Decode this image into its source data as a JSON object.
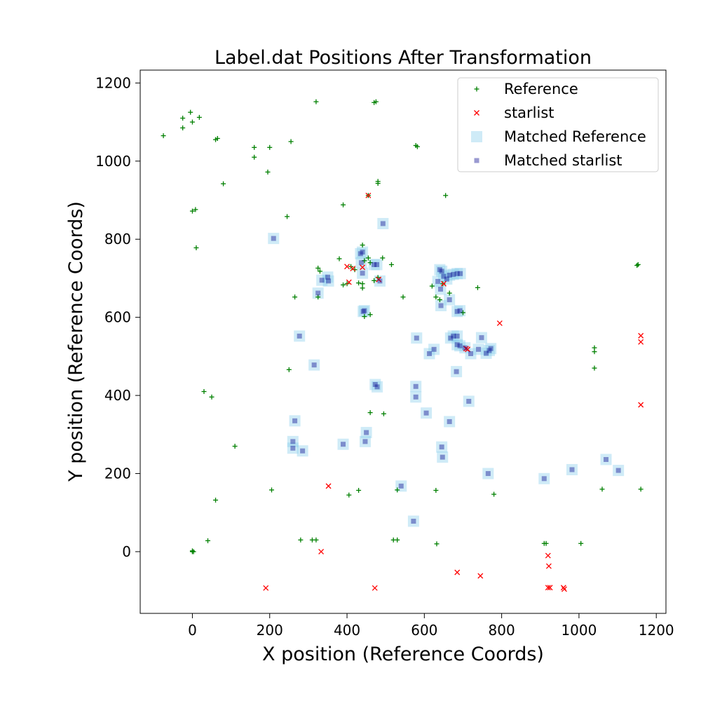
{
  "chart_data": {
    "type": "scatter",
    "title": "Label.dat Positions After Transformation",
    "xlabel": "X position (Reference Coords)",
    "ylabel": "Y position (Reference Coords)",
    "xlim": [
      -135,
      1225
    ],
    "ylim": [
      -158,
      1233
    ],
    "x_ticks": [
      0,
      200,
      400,
      600,
      800,
      1000,
      1200
    ],
    "y_ticks": [
      0,
      200,
      400,
      600,
      800,
      1000,
      1200
    ],
    "x_tick_labels": [
      "0",
      "200",
      "400",
      "600",
      "800",
      "1000",
      "1200"
    ],
    "y_tick_labels": [
      "0",
      "200",
      "400",
      "600",
      "800",
      "1000",
      "1200"
    ],
    "grid": false,
    "legend_position": "upper right",
    "colors": {
      "reference": "#008000",
      "starlist": "#ff0000",
      "matched_reference": "#87ceeb",
      "matched_starlist": "#00008b"
    },
    "series": [
      {
        "name": "Reference",
        "marker": "plus",
        "points": [
          [
            -75,
            1065
          ],
          [
            -25,
            1110
          ],
          [
            -25,
            1085
          ],
          [
            -5,
            1125
          ],
          [
            0,
            1100
          ],
          [
            18,
            1112
          ],
          [
            60,
            1055
          ],
          [
            65,
            1058
          ],
          [
            160,
            1035
          ],
          [
            160,
            1010
          ],
          [
            200,
            1035
          ],
          [
            195,
            972
          ],
          [
            255,
            1050
          ],
          [
            80,
            942
          ],
          [
            0,
            872
          ],
          [
            8,
            876
          ],
          [
            10,
            778
          ],
          [
            245,
            858
          ],
          [
            320,
            1152
          ],
          [
            390,
            888
          ],
          [
            470,
            1150
          ],
          [
            475,
            1152
          ],
          [
            578,
            1040
          ],
          [
            582,
            1037
          ],
          [
            480,
            948
          ],
          [
            480,
            943
          ],
          [
            655,
            912
          ],
          [
            455,
            912
          ],
          [
            1150,
            733
          ],
          [
            1153,
            735
          ],
          [
            325,
            726
          ],
          [
            330,
            718
          ],
          [
            380,
            750
          ],
          [
            390,
            683
          ],
          [
            400,
            686
          ],
          [
            410,
            730
          ],
          [
            420,
            722
          ],
          [
            430,
            688
          ],
          [
            440,
            675
          ],
          [
            440,
            686
          ],
          [
            445,
            745
          ],
          [
            440,
            785
          ],
          [
            455,
            752
          ],
          [
            460,
            740
          ],
          [
            492,
            752
          ],
          [
            515,
            735
          ],
          [
            545,
            652
          ],
          [
            480,
            702
          ],
          [
            470,
            694
          ],
          [
            445,
            602
          ],
          [
            460,
            607
          ],
          [
            265,
            652
          ],
          [
            325,
            652
          ],
          [
            620,
            680
          ],
          [
            630,
            652
          ],
          [
            640,
            645
          ],
          [
            648,
            686
          ],
          [
            665,
            662
          ],
          [
            700,
            612
          ],
          [
            738,
            676
          ],
          [
            460,
            356
          ],
          [
            495,
            353
          ],
          [
            1040,
            522
          ],
          [
            1040,
            512
          ],
          [
            1040,
            470
          ],
          [
            250,
            466
          ],
          [
            30,
            410
          ],
          [
            50,
            396
          ],
          [
            110,
            270
          ],
          [
            205,
            158
          ],
          [
            60,
            132
          ],
          [
            405,
            145
          ],
          [
            430,
            157
          ],
          [
            530,
            158
          ],
          [
            630,
            157
          ],
          [
            780,
            147
          ],
          [
            40,
            28
          ],
          [
            280,
            30
          ],
          [
            310,
            30
          ],
          [
            320,
            30
          ],
          [
            520,
            30
          ],
          [
            530,
            30
          ],
          [
            632,
            20
          ],
          [
            910,
            21
          ],
          [
            915,
            21
          ],
          [
            1005,
            21
          ],
          [
            1060,
            160
          ],
          [
            1160,
            160
          ],
          [
            0,
            0
          ],
          [
            3,
            0
          ],
          [
            0,
            2
          ]
        ]
      },
      {
        "name": "starlist",
        "marker": "x",
        "points": [
          [
            455,
            912
          ],
          [
            400,
            730
          ],
          [
            405,
            690
          ],
          [
            415,
            725
          ],
          [
            440,
            728
          ],
          [
            482,
            697
          ],
          [
            650,
            686
          ],
          [
            708,
            520
          ],
          [
            712,
            518
          ],
          [
            795,
            585
          ],
          [
            1160,
            553
          ],
          [
            1160,
            537
          ],
          [
            1160,
            376
          ],
          [
            352,
            168
          ],
          [
            333,
            0
          ],
          [
            190,
            -93
          ],
          [
            472,
            -93
          ],
          [
            685,
            -53
          ],
          [
            745,
            -62
          ],
          [
            920,
            -10
          ],
          [
            922,
            -37
          ],
          [
            920,
            -92
          ],
          [
            925,
            -92
          ],
          [
            960,
            -92
          ],
          [
            962,
            -96
          ]
        ]
      },
      {
        "name": "Matched Reference",
        "marker": "square",
        "points": [
          [
            210,
            802
          ],
          [
            493,
            840
          ],
          [
            435,
            763
          ],
          [
            440,
            767
          ],
          [
            437,
            740
          ],
          [
            440,
            713
          ],
          [
            470,
            735
          ],
          [
            477,
            735
          ],
          [
            485,
            693
          ],
          [
            350,
            703
          ],
          [
            352,
            693
          ],
          [
            335,
            695
          ],
          [
            325,
            662
          ],
          [
            445,
            617
          ],
          [
            442,
            615
          ],
          [
            640,
            722
          ],
          [
            645,
            718
          ],
          [
            650,
            705
          ],
          [
            658,
            698
          ],
          [
            665,
            708
          ],
          [
            675,
            710
          ],
          [
            685,
            712
          ],
          [
            693,
            712
          ],
          [
            635,
            692
          ],
          [
            642,
            672
          ],
          [
            643,
            630
          ],
          [
            665,
            645
          ],
          [
            685,
            615
          ],
          [
            692,
            617
          ],
          [
            580,
            547
          ],
          [
            613,
            507
          ],
          [
            625,
            518
          ],
          [
            668,
            547
          ],
          [
            675,
            552
          ],
          [
            685,
            552
          ],
          [
            685,
            530
          ],
          [
            692,
            527
          ],
          [
            705,
            522
          ],
          [
            720,
            507
          ],
          [
            740,
            518
          ],
          [
            748,
            548
          ],
          [
            760,
            508
          ],
          [
            772,
            520
          ],
          [
            768,
            515
          ],
          [
            683,
            461
          ],
          [
            277,
            552
          ],
          [
            315,
            478
          ],
          [
            473,
            428
          ],
          [
            478,
            422
          ],
          [
            578,
            423
          ],
          [
            578,
            396
          ],
          [
            715,
            385
          ],
          [
            265,
            335
          ],
          [
            605,
            355
          ],
          [
            665,
            333
          ],
          [
            450,
            305
          ],
          [
            447,
            282
          ],
          [
            390,
            275
          ],
          [
            260,
            282
          ],
          [
            260,
            265
          ],
          [
            285,
            258
          ],
          [
            645,
            268
          ],
          [
            647,
            242
          ],
          [
            765,
            200
          ],
          [
            910,
            187
          ],
          [
            982,
            210
          ],
          [
            1070,
            236
          ],
          [
            1102,
            208
          ],
          [
            540,
            168
          ],
          [
            572,
            78
          ]
        ]
      },
      {
        "name": "Matched starlist",
        "marker": "smallsquare",
        "points": [
          [
            210,
            802
          ],
          [
            493,
            840
          ],
          [
            435,
            763
          ],
          [
            440,
            767
          ],
          [
            437,
            740
          ],
          [
            440,
            713
          ],
          [
            470,
            735
          ],
          [
            477,
            735
          ],
          [
            485,
            693
          ],
          [
            350,
            703
          ],
          [
            352,
            693
          ],
          [
            335,
            695
          ],
          [
            325,
            662
          ],
          [
            445,
            617
          ],
          [
            442,
            615
          ],
          [
            640,
            722
          ],
          [
            645,
            718
          ],
          [
            650,
            705
          ],
          [
            658,
            698
          ],
          [
            665,
            708
          ],
          [
            675,
            710
          ],
          [
            685,
            712
          ],
          [
            693,
            712
          ],
          [
            635,
            692
          ],
          [
            642,
            672
          ],
          [
            643,
            630
          ],
          [
            665,
            645
          ],
          [
            685,
            615
          ],
          [
            692,
            617
          ],
          [
            580,
            547
          ],
          [
            613,
            507
          ],
          [
            625,
            518
          ],
          [
            668,
            547
          ],
          [
            675,
            552
          ],
          [
            685,
            552
          ],
          [
            685,
            530
          ],
          [
            692,
            527
          ],
          [
            705,
            522
          ],
          [
            720,
            507
          ],
          [
            740,
            518
          ],
          [
            748,
            548
          ],
          [
            760,
            508
          ],
          [
            772,
            520
          ],
          [
            768,
            515
          ],
          [
            683,
            461
          ],
          [
            277,
            552
          ],
          [
            315,
            478
          ],
          [
            473,
            428
          ],
          [
            478,
            422
          ],
          [
            578,
            423
          ],
          [
            578,
            396
          ],
          [
            715,
            385
          ],
          [
            265,
            335
          ],
          [
            605,
            355
          ],
          [
            665,
            333
          ],
          [
            450,
            305
          ],
          [
            447,
            282
          ],
          [
            390,
            275
          ],
          [
            260,
            282
          ],
          [
            260,
            265
          ],
          [
            285,
            258
          ],
          [
            645,
            268
          ],
          [
            647,
            242
          ],
          [
            765,
            200
          ],
          [
            910,
            187
          ],
          [
            982,
            210
          ],
          [
            1070,
            236
          ],
          [
            1102,
            208
          ],
          [
            540,
            168
          ],
          [
            572,
            78
          ]
        ]
      }
    ]
  }
}
